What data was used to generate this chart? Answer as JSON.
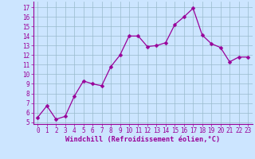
{
  "x": [
    0,
    1,
    2,
    3,
    4,
    5,
    6,
    7,
    8,
    9,
    10,
    11,
    12,
    13,
    14,
    15,
    16,
    17,
    18,
    19,
    20,
    21,
    22,
    23
  ],
  "y": [
    5.5,
    6.7,
    5.3,
    5.6,
    7.7,
    9.3,
    9.0,
    8.8,
    10.8,
    12.0,
    14.0,
    14.0,
    12.9,
    13.0,
    13.3,
    15.2,
    16.0,
    16.9,
    14.1,
    13.2,
    12.8,
    11.3,
    11.8,
    11.8
  ],
  "line_color": "#990099",
  "marker": "D",
  "marker_size": 2.5,
  "background_color": "#cce5ff",
  "grid_color": "#99bbcc",
  "xlabel": "Windchill (Refroidissement éolien,°C)",
  "xlabel_color": "#990099",
  "tick_color": "#990099",
  "ylabel_ticks": [
    5,
    6,
    7,
    8,
    9,
    10,
    11,
    12,
    13,
    14,
    15,
    16,
    17
  ],
  "xlim": [
    -0.5,
    23.5
  ],
  "ylim": [
    4.8,
    17.6
  ],
  "xticks": [
    0,
    1,
    2,
    3,
    4,
    5,
    6,
    7,
    8,
    9,
    10,
    11,
    12,
    13,
    14,
    15,
    16,
    17,
    18,
    19,
    20,
    21,
    22,
    23
  ],
  "tick_fontsize": 5.5,
  "xlabel_fontsize": 6.2,
  "spine_color": "#990099"
}
